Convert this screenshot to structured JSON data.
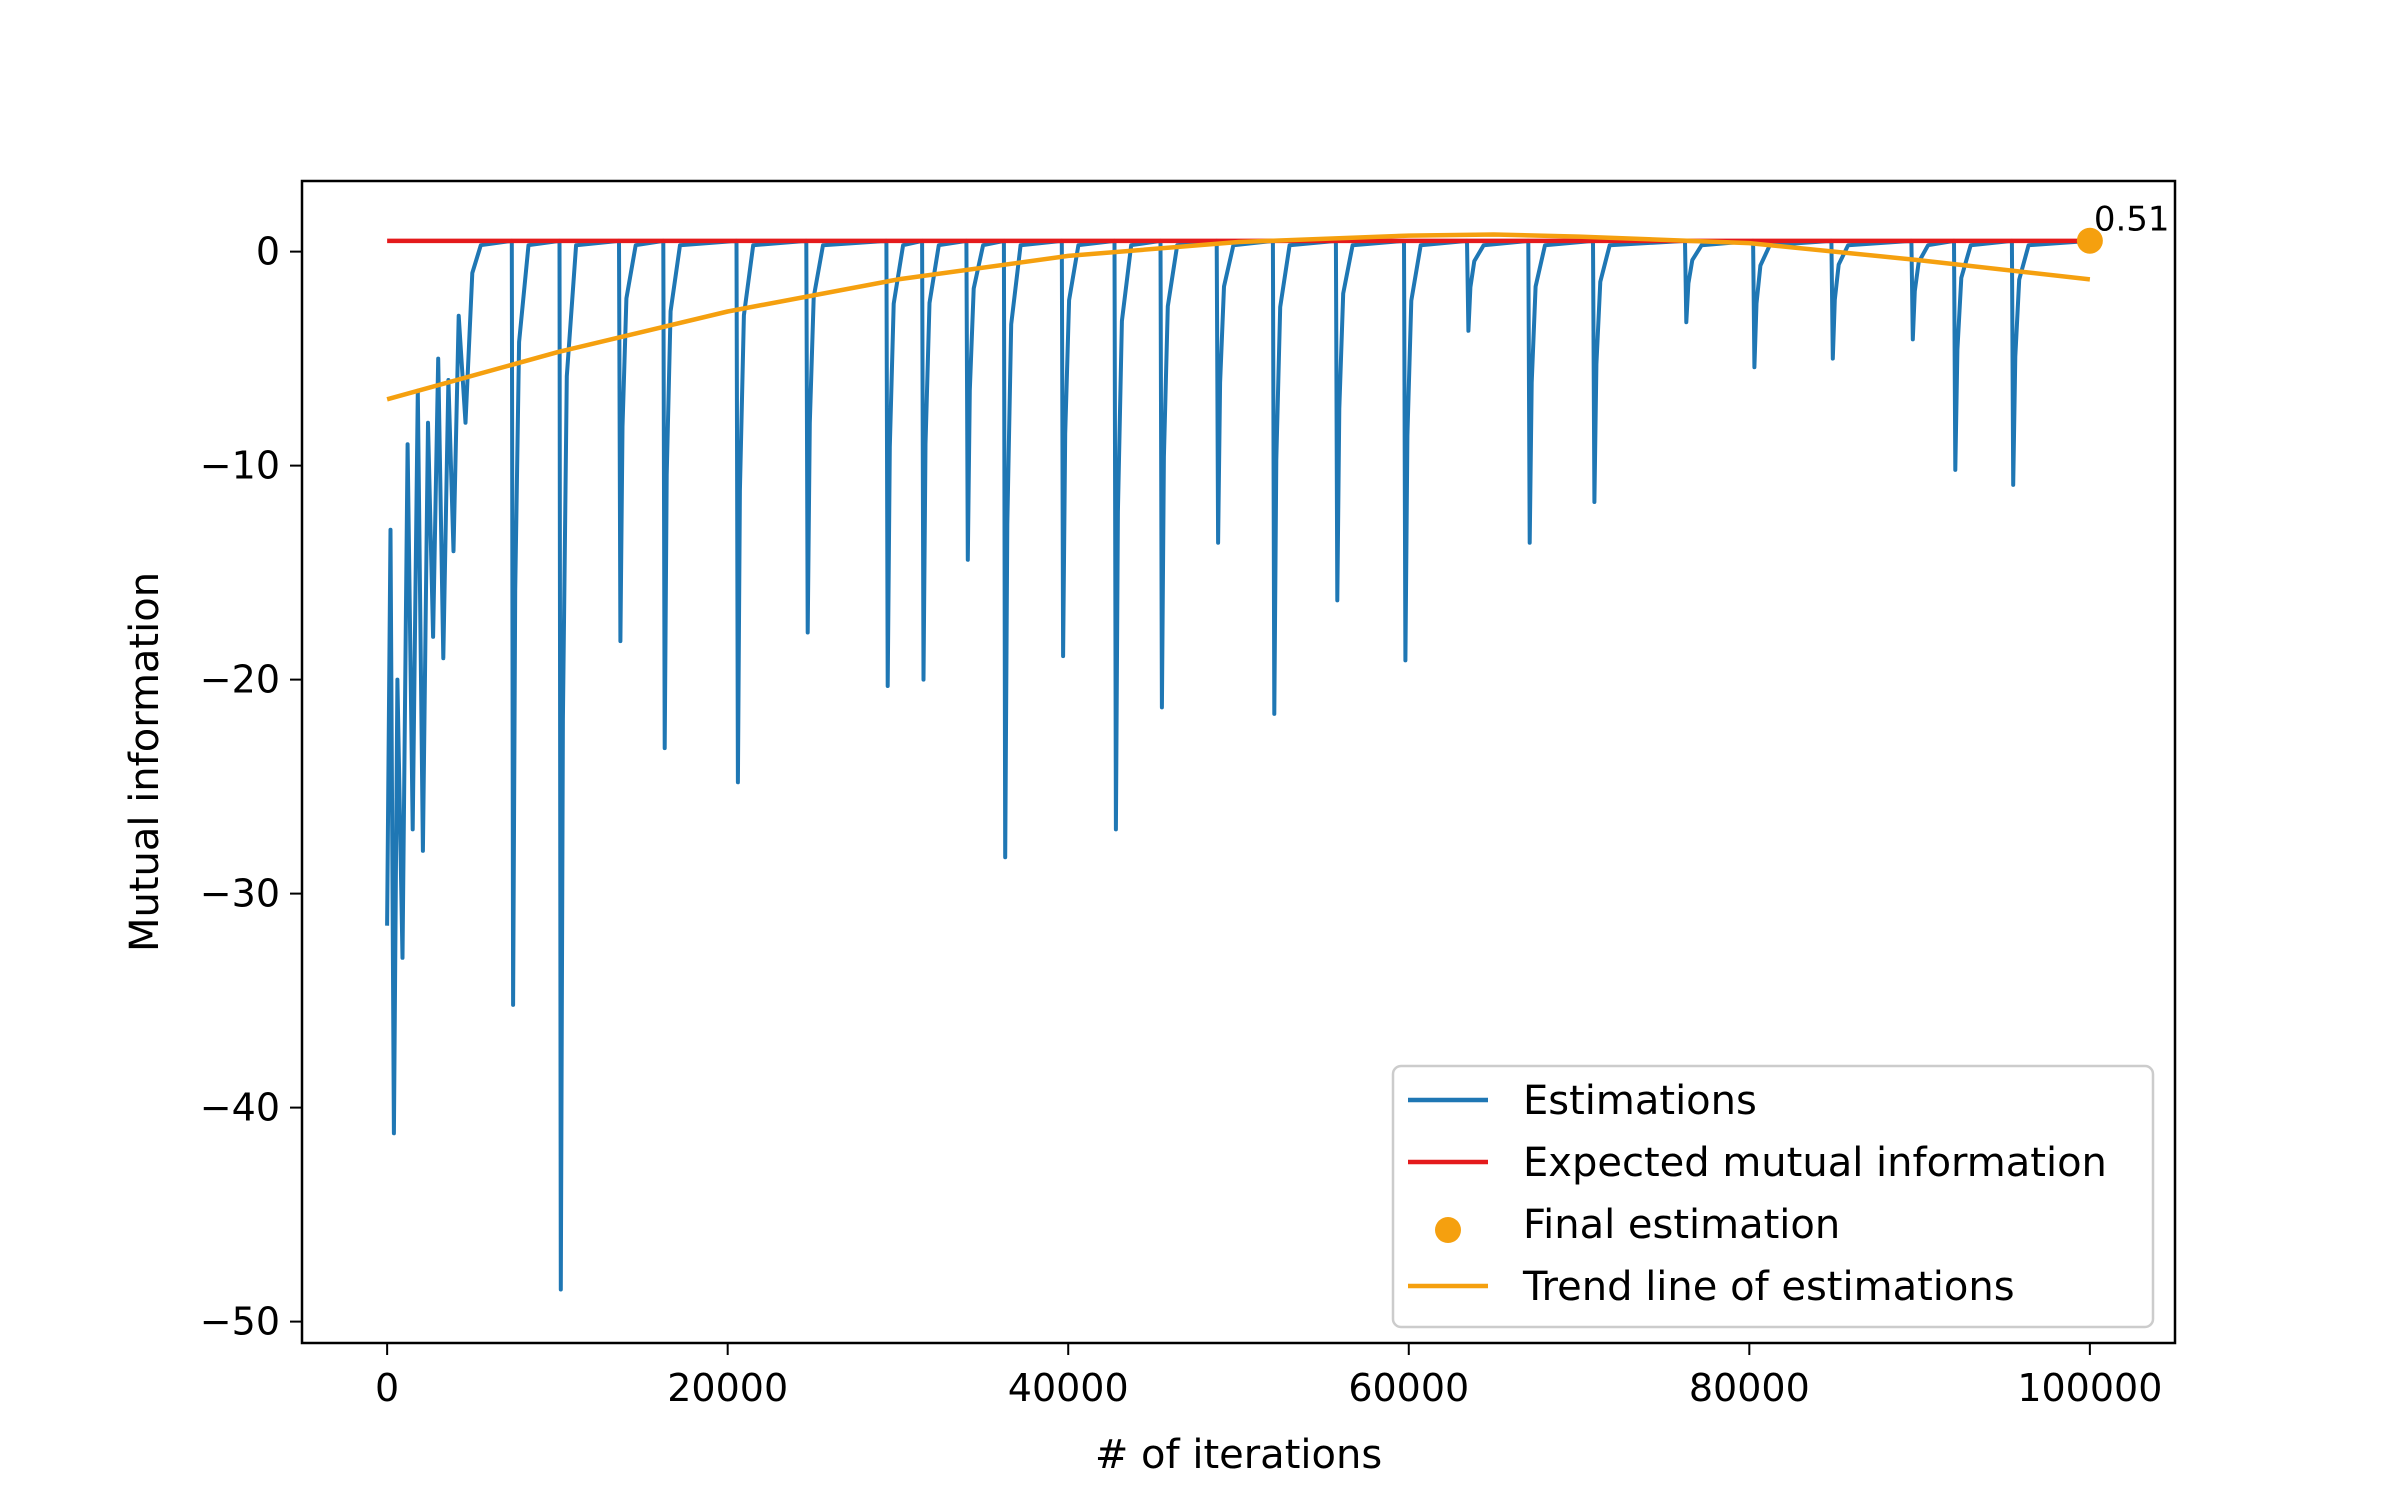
{
  "chart_data": {
    "type": "line",
    "title": "",
    "xlabel": "# of iterations",
    "ylabel": "Mutual information",
    "xlim": [
      -5000,
      105000
    ],
    "ylim": [
      -51,
      3.3
    ],
    "xticks": [
      0,
      20000,
      40000,
      60000,
      80000,
      100000
    ],
    "xtick_labels": [
      "0",
      "20000",
      "40000",
      "60000",
      "80000",
      "100000"
    ],
    "yticks": [
      0,
      -10,
      -20,
      -30,
      -40,
      -50
    ],
    "ytick_labels": [
      "0",
      "−10",
      "−20",
      "−30",
      "−40",
      "−50"
    ],
    "grid": false,
    "legend_position": "lower-right",
    "series": [
      {
        "name": "Estimations",
        "kind": "line",
        "color": "#1f77b4",
        "baseline": 0.5,
        "x": [
          0,
          200,
          400,
          600,
          900,
          1200,
          1500,
          1800,
          2100,
          2400,
          2700,
          3000,
          3300,
          3600,
          3900,
          4200,
          4600,
          5000,
          5500
        ],
        "y": [
          -31.5,
          -13,
          -41.2,
          -20,
          -33,
          -9,
          -27,
          -6.5,
          -28,
          -8,
          -18,
          -5,
          -19,
          -6,
          -14,
          -3,
          -8,
          -1,
          0.3
        ],
        "spikes": [
          {
            "x": 7400,
            "y": -35.2
          },
          {
            "x": 10200,
            "y": -48.5
          },
          {
            "x": 13700,
            "y": -18.2
          },
          {
            "x": 16300,
            "y": -23.2
          },
          {
            "x": 20600,
            "y": -24.8
          },
          {
            "x": 24700,
            "y": -17.8
          },
          {
            "x": 29400,
            "y": -20.3
          },
          {
            "x": 31500,
            "y": -20
          },
          {
            "x": 34100,
            "y": -14.4
          },
          {
            "x": 36300,
            "y": -28.3
          },
          {
            "x": 39700,
            "y": -18.9
          },
          {
            "x": 42800,
            "y": -27
          },
          {
            "x": 45500,
            "y": -21.3
          },
          {
            "x": 48800,
            "y": -13.6
          },
          {
            "x": 52100,
            "y": -21.6
          },
          {
            "x": 55800,
            "y": -16.3
          },
          {
            "x": 59800,
            "y": -19.1
          },
          {
            "x": 63500,
            "y": -3.7
          },
          {
            "x": 67100,
            "y": -13.6
          },
          {
            "x": 70900,
            "y": -11.7
          },
          {
            "x": 76300,
            "y": -3.3
          },
          {
            "x": 80300,
            "y": -5.4
          },
          {
            "x": 84900,
            "y": -5
          },
          {
            "x": 89600,
            "y": -4.1
          },
          {
            "x": 92100,
            "y": -10.2
          },
          {
            "x": 95500,
            "y": -10.9
          }
        ]
      },
      {
        "name": "Expected mutual information",
        "kind": "line",
        "color": "#e41a1c",
        "x": [
          0,
          100000
        ],
        "y": [
          0.5,
          0.5
        ]
      },
      {
        "name": "Final estimation",
        "kind": "point",
        "color": "#f5a00f",
        "x": [
          100000
        ],
        "y": [
          0.51
        ],
        "label": "0.51"
      },
      {
        "name": "Trend line of estimations",
        "kind": "line",
        "color": "#f5a00f",
        "x": [
          0,
          10000,
          20000,
          30000,
          40000,
          50000,
          60000,
          65000,
          70000,
          80000,
          90000,
          100000
        ],
        "y": [
          -6.9,
          -4.7,
          -2.8,
          -1.3,
          -0.2,
          0.45,
          0.75,
          0.8,
          0.7,
          0.4,
          -0.4,
          -1.3
        ]
      }
    ]
  }
}
